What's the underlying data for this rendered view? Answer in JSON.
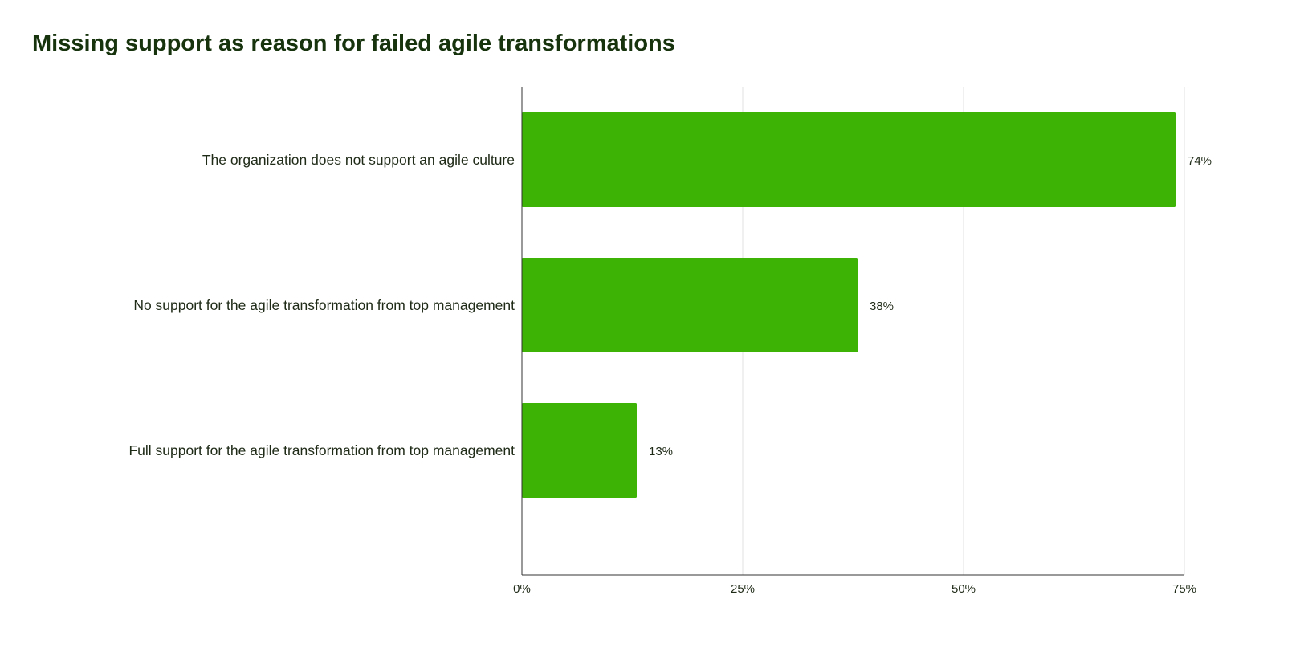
{
  "chart_data": {
    "type": "bar",
    "orientation": "horizontal",
    "title": "Missing support as reason for failed agile transformations",
    "categories": [
      "The organization does not support an agile culture",
      "No support for the agile transformation from top management",
      "Full support for the agile transformation from top management"
    ],
    "values": [
      74,
      38,
      13
    ],
    "data_labels": [
      "74%",
      "38%",
      "13%"
    ],
    "xlim": [
      0,
      75
    ],
    "x_ticks": [
      0,
      25,
      50,
      75
    ],
    "x_tick_labels": [
      "0%",
      "25%",
      "50%",
      "75%"
    ],
    "xlabel": "",
    "ylabel": "",
    "grid": true,
    "legend": "none",
    "colors": {
      "bar": "#3cb305",
      "title": "#16330d",
      "text": "#1f2a17",
      "gridline": "#e0e0e0",
      "axis": "#333333"
    }
  }
}
